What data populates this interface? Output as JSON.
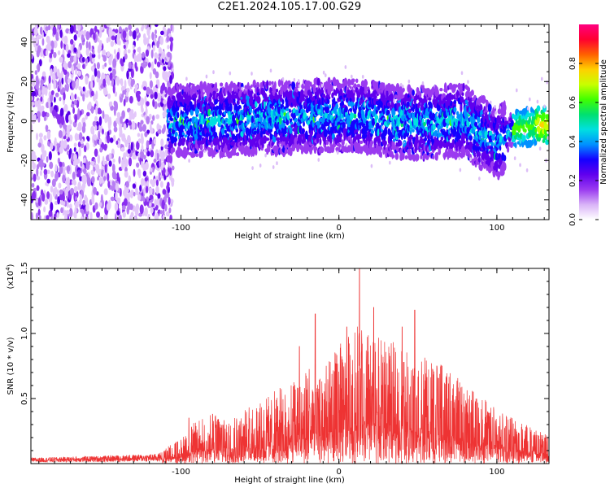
{
  "figure": {
    "title": "C2E1.2024.105.17.00.G29"
  },
  "chart_data": [
    {
      "type": "heatmap",
      "title": "C2E1.2024.105.17.00.G29",
      "xlabel": "Height of straight line (km)",
      "ylabel": "Frequency (Hz)",
      "xlim": [
        -195,
        133
      ],
      "ylim": [
        -50,
        49
      ],
      "x_ticks": [
        "-100",
        "0",
        "100"
      ],
      "x_tick_values": [
        -100,
        0,
        100
      ],
      "y_ticks": [
        "40",
        "20",
        "0",
        "-20",
        "-40"
      ],
      "y_tick_values": [
        40,
        20,
        0,
        -20,
        -40
      ],
      "grid": false,
      "description_of_field": {
        "noise_region_x": [
          -195,
          -108
        ],
        "signal_center_track": [
          {
            "x": -105,
            "y": 0
          },
          {
            "x": -60,
            "y": 1
          },
          {
            "x": -20,
            "y": 2
          },
          {
            "x": 10,
            "y": 3
          },
          {
            "x": 40,
            "y": -1
          },
          {
            "x": 80,
            "y": 0
          },
          {
            "x": 95,
            "y": -9
          },
          {
            "x": 100,
            "y": -12
          },
          {
            "x": 110,
            "y": -4
          },
          {
            "x": 120,
            "y": -3
          },
          {
            "x": 133,
            "y": -2
          }
        ]
      },
      "colorbar": {
        "label": "Normalized spectral amplitude",
        "range": [
          0,
          1
        ],
        "ticks": [
          "0.0",
          "0.2",
          "0.4",
          "0.6",
          "0.8"
        ],
        "tick_values": [
          0,
          0.2,
          0.4,
          0.6,
          0.8
        ],
        "colors": [
          "#ffffff",
          "#d9b3f7",
          "#9a3bf0",
          "#6000ee",
          "#1500ff",
          "#0090ff",
          "#00e0e0",
          "#00e070",
          "#40ff00",
          "#c8ff00",
          "#ffd000",
          "#ff6000",
          "#ff0030",
          "#ff0080"
        ]
      }
    },
    {
      "type": "line",
      "xlabel": "Height of straight line (km)",
      "ylabel": "SNR (10 * v/v)",
      "y_multiplier_label": "(x10",
      "y_multiplier_exp": "4",
      "xlim": [
        -195,
        133
      ],
      "ylim": [
        0,
        1.5
      ],
      "x_ticks": [
        "-100",
        "0",
        "100"
      ],
      "x_tick_values": [
        -100,
        0,
        100
      ],
      "y_ticks": [
        "1.5",
        "1.0",
        "0.5"
      ],
      "y_tick_values": [
        1.5,
        1.0,
        0.5
      ],
      "grid": false,
      "line_color": "#ee3333",
      "series": [
        {
          "x": [
            -195,
            -150,
            -115,
            -100,
            -90,
            -80,
            -70,
            -60,
            -50,
            -40,
            -30,
            -20,
            -10,
            0,
            10,
            13,
            20,
            30,
            40,
            50,
            60,
            70,
            80,
            90,
            100,
            110,
            120,
            133
          ],
          "y": [
            0.03,
            0.04,
            0.05,
            0.1,
            0.18,
            0.2,
            0.2,
            0.22,
            0.25,
            0.3,
            0.33,
            0.42,
            0.38,
            0.48,
            0.55,
            0.58,
            0.52,
            0.5,
            0.48,
            0.45,
            0.42,
            0.38,
            0.32,
            0.28,
            0.22,
            0.2,
            0.16,
            0.13
          ],
          "peaks": [
            {
              "x": -110,
              "y": 0.1
            },
            {
              "x": -95,
              "y": 0.35
            },
            {
              "x": -80,
              "y": 0.38
            },
            {
              "x": -25,
              "y": 0.9
            },
            {
              "x": -15,
              "y": 1.15
            },
            {
              "x": 5,
              "y": 1.05
            },
            {
              "x": 13,
              "y": 1.5
            },
            {
              "x": 22,
              "y": 1.2
            },
            {
              "x": 40,
              "y": 1.05
            },
            {
              "x": 48,
              "y": 1.18
            },
            {
              "x": 62,
              "y": 0.75
            },
            {
              "x": 85,
              "y": 0.55
            }
          ]
        }
      ]
    }
  ]
}
